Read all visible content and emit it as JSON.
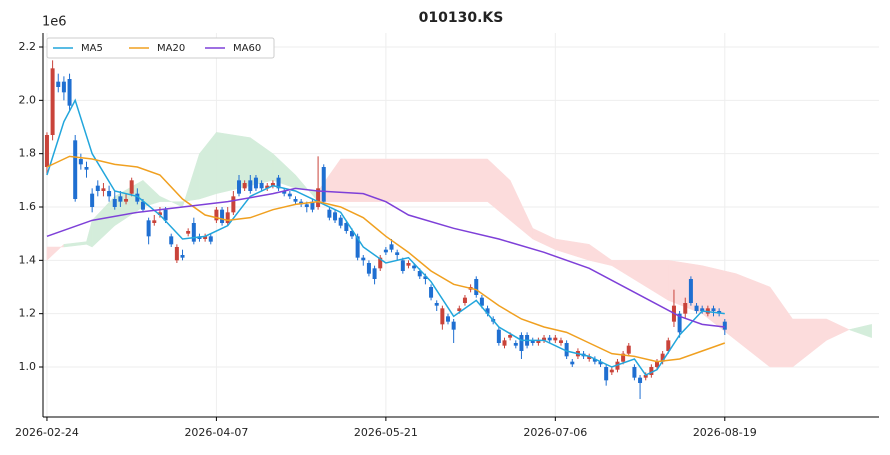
{
  "chart_data": {
    "type": "candlestick",
    "title": "010130.KS",
    "y_offset_label": "1e6",
    "xlim": [
      -0.7,
      147.3
    ],
    "ylim": [
      0.8125,
      2.2525
    ],
    "xticks": [
      {
        "value": 0,
        "label": "2026-02-24"
      },
      {
        "value": 30,
        "label": "2026-04-07"
      },
      {
        "value": 60,
        "label": "2026-05-21"
      },
      {
        "value": 90,
        "label": "2026-07-06"
      },
      {
        "value": 120,
        "label": "2026-08-19"
      }
    ],
    "yticks": [
      {
        "value": 1,
        "label": "1.0"
      },
      {
        "value": 1.2,
        "label": "1.2"
      },
      {
        "value": 1.4,
        "label": "1.4"
      },
      {
        "value": 1.6,
        "label": "1.6"
      },
      {
        "value": 1.8,
        "label": "1.8"
      },
      {
        "value": 2,
        "label": "2.0"
      },
      {
        "value": 2.2,
        "label": "2.2"
      }
    ],
    "grid": true,
    "legend": "upper left",
    "up_color": "#c9433a",
    "down_color": "#1f6fd1",
    "candles": {
      "x": [
        0,
        1,
        2,
        3,
        4,
        5,
        6,
        7,
        8,
        9,
        10,
        11,
        12,
        13,
        14,
        15,
        16,
        17,
        18,
        19,
        20,
        21,
        22,
        23,
        24,
        25,
        26,
        27,
        28,
        29,
        30,
        31,
        32,
        33,
        34,
        35,
        36,
        37,
        38,
        39,
        40,
        41,
        42,
        43,
        44,
        45,
        46,
        47,
        48,
        49,
        50,
        51,
        52,
        53,
        54,
        55,
        56,
        57,
        58,
        59,
        60,
        61,
        62,
        63,
        64,
        65,
        66,
        67,
        68,
        69,
        70,
        71,
        72,
        73,
        74,
        75,
        76,
        77,
        78,
        79,
        80,
        81,
        82,
        83,
        84,
        85,
        86,
        87,
        88,
        89,
        90,
        91,
        92,
        93,
        94,
        95,
        96,
        97,
        98,
        99,
        100,
        101,
        102,
        103,
        104,
        105,
        106,
        107,
        108,
        109,
        110,
        111,
        112,
        113,
        114,
        115,
        116,
        117,
        118,
        119,
        120
      ],
      "open": [
        1.75,
        1.87,
        2.07,
        2.07,
        2.08,
        1.85,
        1.78,
        1.75,
        1.65,
        1.68,
        1.66,
        1.66,
        1.63,
        1.64,
        1.62,
        1.65,
        1.65,
        1.62,
        1.55,
        1.54,
        1.57,
        1.59,
        1.49,
        1.4,
        1.42,
        1.5,
        1.54,
        1.49,
        1.48,
        1.49,
        1.55,
        1.59,
        1.54,
        1.58,
        1.7,
        1.67,
        1.7,
        1.71,
        1.69,
        1.67,
        1.68,
        1.71,
        1.66,
        1.65,
        1.63,
        1.62,
        1.61,
        1.62,
        1.6,
        1.75,
        1.59,
        1.58,
        1.56,
        1.54,
        1.51,
        1.49,
        1.41,
        1.39,
        1.37,
        1.37,
        1.44,
        1.46,
        1.43,
        1.4,
        1.38,
        1.38,
        1.36,
        1.34,
        1.3,
        1.24,
        1.16,
        1.19,
        1.17,
        1.21,
        1.24,
        1.29,
        1.33,
        1.26,
        1.22,
        1.18,
        1.14,
        1.08,
        1.11,
        1.09,
        1.12,
        1.12,
        1.1,
        1.09,
        1.1,
        1.11,
        1.1,
        1.09,
        1.09,
        1.02,
        1.04,
        1.05,
        1.03,
        1.03,
        1.02,
        1.0,
        0.98,
        0.99,
        1.02,
        1.05,
        1.0,
        0.96,
        0.96,
        0.97,
        1.0,
        1.02,
        1.06,
        1.17,
        1.2,
        1.2,
        1.33,
        1.23,
        1.22,
        1.2,
        1.22,
        1.21,
        1.17
      ],
      "high": [
        1.88,
        2.15,
        2.1,
        2.09,
        2.1,
        1.87,
        1.8,
        1.77,
        1.67,
        1.7,
        1.69,
        1.68,
        1.66,
        1.66,
        1.65,
        1.71,
        1.67,
        1.63,
        1.56,
        1.57,
        1.6,
        1.6,
        1.5,
        1.46,
        1.44,
        1.52,
        1.56,
        1.5,
        1.5,
        1.5,
        1.6,
        1.6,
        1.6,
        1.66,
        1.72,
        1.7,
        1.72,
        1.72,
        1.7,
        1.69,
        1.7,
        1.72,
        1.67,
        1.66,
        1.64,
        1.63,
        1.62,
        1.63,
        1.79,
        1.76,
        1.6,
        1.59,
        1.57,
        1.55,
        1.52,
        1.5,
        1.42,
        1.4,
        1.38,
        1.42,
        1.45,
        1.48,
        1.44,
        1.41,
        1.4,
        1.39,
        1.37,
        1.35,
        1.31,
        1.25,
        1.23,
        1.2,
        1.18,
        1.23,
        1.27,
        1.31,
        1.34,
        1.27,
        1.23,
        1.19,
        1.15,
        1.11,
        1.13,
        1.1,
        1.13,
        1.13,
        1.11,
        1.11,
        1.12,
        1.12,
        1.12,
        1.11,
        1.1,
        1.03,
        1.07,
        1.06,
        1.05,
        1.04,
        1.03,
        1.01,
        1.0,
        1.03,
        1.06,
        1.09,
        1.01,
        0.97,
        0.98,
        1.01,
        1.03,
        1.06,
        1.11,
        1.29,
        1.21,
        1.26,
        1.34,
        1.24,
        1.23,
        1.23,
        1.23,
        1.22,
        1.18
      ],
      "low": [
        1.72,
        1.85,
        2.03,
        2.0,
        1.96,
        1.62,
        1.74,
        1.71,
        1.58,
        1.64,
        1.64,
        1.62,
        1.59,
        1.6,
        1.61,
        1.64,
        1.61,
        1.58,
        1.46,
        1.53,
        1.56,
        1.54,
        1.45,
        1.39,
        1.4,
        1.49,
        1.46,
        1.47,
        1.47,
        1.46,
        1.54,
        1.53,
        1.53,
        1.57,
        1.64,
        1.66,
        1.65,
        1.66,
        1.66,
        1.66,
        1.67,
        1.66,
        1.64,
        1.63,
        1.61,
        1.6,
        1.58,
        1.58,
        1.59,
        1.61,
        1.55,
        1.54,
        1.52,
        1.5,
        1.48,
        1.4,
        1.38,
        1.34,
        1.31,
        1.36,
        1.42,
        1.43,
        1.4,
        1.35,
        1.37,
        1.36,
        1.33,
        1.31,
        1.25,
        1.21,
        1.14,
        1.16,
        1.09,
        1.2,
        1.23,
        1.28,
        1.26,
        1.22,
        1.19,
        1.16,
        1.08,
        1.07,
        1.1,
        1.07,
        1.03,
        1.07,
        1.08,
        1.08,
        1.09,
        1.09,
        1.09,
        1.08,
        1.03,
        1.0,
        1.03,
        1.03,
        1.02,
        1.01,
        1.0,
        0.93,
        0.97,
        0.98,
        1.01,
        1.04,
        0.95,
        0.88,
        0.95,
        0.96,
        0.99,
        1.01,
        1.05,
        1.15,
        1.11,
        1.18,
        1.23,
        1.2,
        1.2,
        1.19,
        1.19,
        1.19,
        1.12
      ],
      "close": [
        1.87,
        2.12,
        2.05,
        2.03,
        1.98,
        1.63,
        1.76,
        1.74,
        1.6,
        1.66,
        1.67,
        1.64,
        1.6,
        1.62,
        1.63,
        1.7,
        1.62,
        1.59,
        1.49,
        1.55,
        1.58,
        1.55,
        1.46,
        1.45,
        1.41,
        1.51,
        1.47,
        1.48,
        1.49,
        1.47,
        1.59,
        1.54,
        1.58,
        1.64,
        1.65,
        1.69,
        1.66,
        1.67,
        1.67,
        1.68,
        1.69,
        1.67,
        1.65,
        1.64,
        1.62,
        1.61,
        1.6,
        1.59,
        1.67,
        1.62,
        1.56,
        1.55,
        1.53,
        1.51,
        1.49,
        1.41,
        1.4,
        1.35,
        1.33,
        1.41,
        1.43,
        1.44,
        1.42,
        1.36,
        1.39,
        1.37,
        1.34,
        1.33,
        1.26,
        1.23,
        1.22,
        1.17,
        1.14,
        1.22,
        1.26,
        1.3,
        1.27,
        1.23,
        1.2,
        1.17,
        1.09,
        1.1,
        1.12,
        1.08,
        1.06,
        1.08,
        1.09,
        1.1,
        1.11,
        1.1,
        1.11,
        1.1,
        1.04,
        1.01,
        1.06,
        1.04,
        1.04,
        1.02,
        1.01,
        0.95,
        0.99,
        1.02,
        1.05,
        1.08,
        0.96,
        0.94,
        0.97,
        1.0,
        1.02,
        1.05,
        1.1,
        1.23,
        1.13,
        1.24,
        1.24,
        1.21,
        1.21,
        1.22,
        1.21,
        1.2,
        1.14
      ]
    },
    "series": [
      {
        "name": "MA5",
        "color": "#22a6dc",
        "x": [
          0,
          3,
          5,
          8,
          12,
          16,
          20,
          24,
          28,
          32,
          36,
          40,
          44,
          48,
          52,
          56,
          60,
          64,
          68,
          72,
          76,
          80,
          84,
          88,
          92,
          96,
          100,
          104,
          106,
          108,
          112,
          116,
          120
        ],
        "values": [
          1.72,
          1.92,
          2.0,
          1.8,
          1.66,
          1.64,
          1.57,
          1.48,
          1.49,
          1.53,
          1.64,
          1.68,
          1.66,
          1.62,
          1.58,
          1.45,
          1.39,
          1.41,
          1.32,
          1.19,
          1.25,
          1.15,
          1.1,
          1.1,
          1.06,
          1.04,
          1.0,
          1.03,
          0.97,
          0.99,
          1.12,
          1.21,
          1.2
        ]
      },
      {
        "name": "MA20",
        "color": "#f0a020",
        "x": [
          0,
          4,
          8,
          12,
          16,
          20,
          24,
          28,
          32,
          36,
          40,
          44,
          48,
          52,
          56,
          60,
          64,
          68,
          72,
          76,
          80,
          84,
          88,
          92,
          96,
          100,
          104,
          108,
          112,
          116,
          120
        ],
        "values": [
          1.75,
          1.79,
          1.78,
          1.76,
          1.75,
          1.72,
          1.63,
          1.57,
          1.55,
          1.56,
          1.59,
          1.61,
          1.62,
          1.6,
          1.56,
          1.49,
          1.43,
          1.36,
          1.31,
          1.29,
          1.23,
          1.18,
          1.15,
          1.13,
          1.09,
          1.05,
          1.04,
          1.02,
          1.03,
          1.06,
          1.09
        ]
      },
      {
        "name": "MA60",
        "color": "#7e40d8",
        "x": [
          0,
          8,
          16,
          24,
          32,
          40,
          44,
          48,
          56,
          60,
          64,
          72,
          80,
          88,
          96,
          104,
          112,
          116,
          120
        ],
        "values": [
          1.49,
          1.55,
          1.58,
          1.6,
          1.62,
          1.65,
          1.67,
          1.66,
          1.65,
          1.62,
          1.57,
          1.52,
          1.48,
          1.43,
          1.37,
          1.28,
          1.19,
          1.16,
          1.15
        ]
      }
    ],
    "cloud": {
      "up_color": "#d4eddb",
      "down_color": "#fcdcdc",
      "x": [
        0,
        3,
        7,
        8,
        12,
        17,
        20,
        24,
        27,
        30,
        36,
        40,
        44,
        48,
        52,
        60,
        70,
        78,
        82,
        86,
        90,
        96,
        100,
        110,
        116,
        122,
        128,
        132,
        138,
        142,
        146
      ],
      "span_a": [
        1.4,
        1.46,
        1.47,
        1.55,
        1.64,
        1.7,
        1.64,
        1.6,
        1.8,
        1.88,
        1.86,
        1.8,
        1.72,
        1.62,
        1.62,
        1.62,
        1.62,
        1.62,
        1.55,
        1.48,
        1.44,
        1.4,
        1.38,
        1.25,
        1.2,
        1.1,
        1.0,
        1.0,
        1.1,
        1.14,
        1.16
      ],
      "span_b": [
        1.45,
        1.45,
        1.46,
        1.45,
        1.53,
        1.6,
        1.62,
        1.62,
        1.63,
        1.65,
        1.68,
        1.7,
        1.67,
        1.66,
        1.78,
        1.78,
        1.78,
        1.78,
        1.7,
        1.52,
        1.48,
        1.46,
        1.4,
        1.4,
        1.38,
        1.35,
        1.3,
        1.18,
        1.18,
        1.14,
        1.11
      ]
    }
  }
}
